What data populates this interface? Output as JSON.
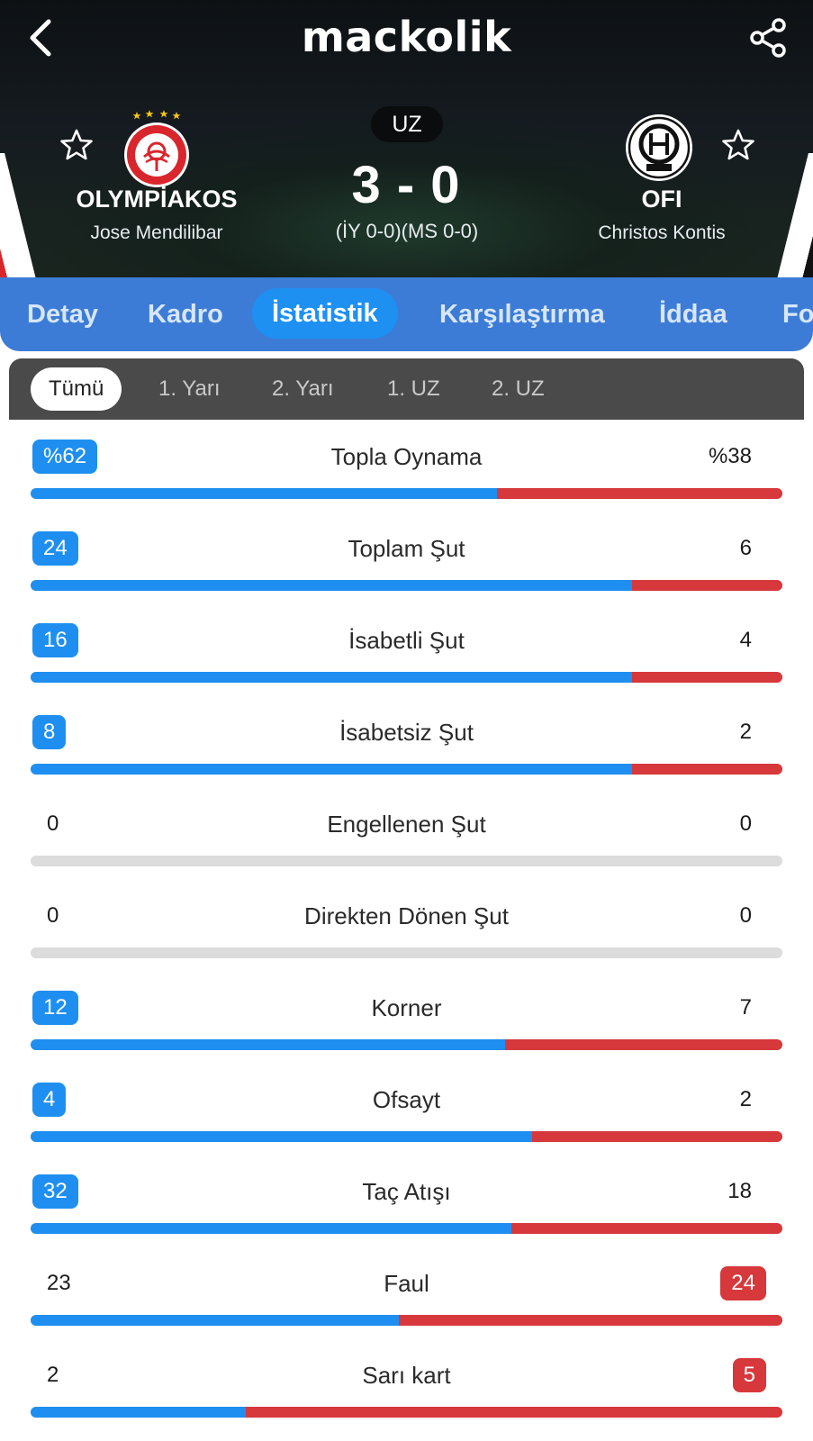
{
  "header": {
    "logo": "mackolik",
    "status": "UZ",
    "score": "3 - 0",
    "subscore": "(İY 0-0)(MS 0-0)",
    "home": {
      "name": "OLYMPİAKOS",
      "coach": "Jose Mendilibar"
    },
    "away": {
      "name": "OFI",
      "coach": "Christos Kontis"
    },
    "colors": {
      "home": "#d9262c",
      "away": "#111111"
    }
  },
  "tabs": [
    {
      "label": "Detay",
      "active": false
    },
    {
      "label": "Kadro",
      "active": false
    },
    {
      "label": "İstatistik",
      "active": true
    },
    {
      "label": "Karşılaştırma",
      "active": false
    },
    {
      "label": "İddaa",
      "active": false
    },
    {
      "label": "Fo",
      "active": false
    }
  ],
  "periods": [
    {
      "label": "Tümü",
      "active": true
    },
    {
      "label": "1. Yarı",
      "active": false
    },
    {
      "label": "2. Yarı",
      "active": false
    },
    {
      "label": "1. UZ",
      "active": false
    },
    {
      "label": "2. UZ",
      "active": false
    }
  ],
  "stats": [
    {
      "label": "Topla Oynama",
      "home": "%62",
      "away": "%38",
      "home_value": 62,
      "away_value": 38
    },
    {
      "label": "Toplam Şut",
      "home": "24",
      "away": "6",
      "home_value": 24,
      "away_value": 6
    },
    {
      "label": "İsabetli Şut",
      "home": "16",
      "away": "4",
      "home_value": 16,
      "away_value": 4
    },
    {
      "label": "İsabetsiz Şut",
      "home": "8",
      "away": "2",
      "home_value": 8,
      "away_value": 2
    },
    {
      "label": "Engellenen Şut",
      "home": "0",
      "away": "0",
      "home_value": 0,
      "away_value": 0
    },
    {
      "label": "Direkten Dönen Şut",
      "home": "0",
      "away": "0",
      "home_value": 0,
      "away_value": 0
    },
    {
      "label": "Korner",
      "home": "12",
      "away": "7",
      "home_value": 12,
      "away_value": 7
    },
    {
      "label": "Ofsayt",
      "home": "4",
      "away": "2",
      "home_value": 4,
      "away_value": 2
    },
    {
      "label": "Taç Atışı",
      "home": "32",
      "away": "18",
      "home_value": 32,
      "away_value": 18
    },
    {
      "label": "Faul",
      "home": "23",
      "away": "24",
      "home_value": 23,
      "away_value": 24
    },
    {
      "label": "Sarı kart",
      "home": "2",
      "away": "5",
      "home_value": 2,
      "away_value": 5
    }
  ],
  "icons": {
    "back": "chevron-left-icon",
    "share": "share-icon",
    "favorite": "star-outline-icon"
  }
}
